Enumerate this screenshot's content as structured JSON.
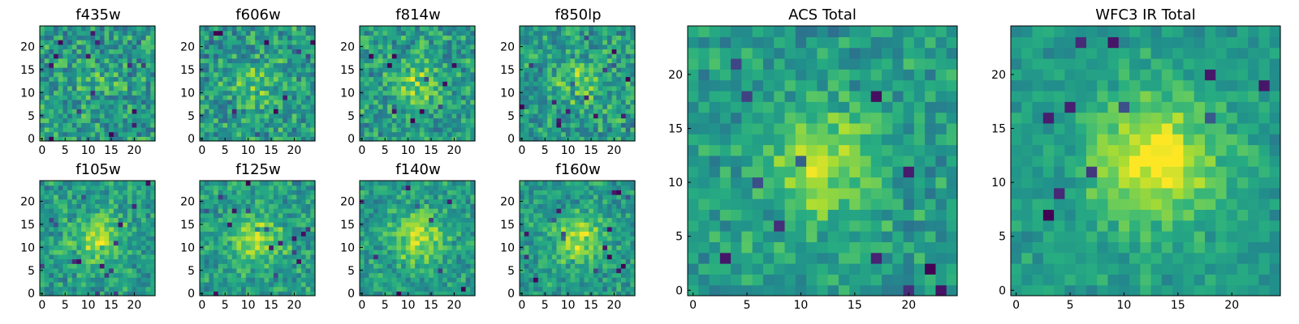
{
  "chart_data": [
    {
      "type": "heatmap",
      "title": "f435w",
      "xlabel": "",
      "ylabel": "",
      "xlim": [
        -0.5,
        24.5
      ],
      "ylim": [
        -0.5,
        24.5
      ],
      "xticks": [
        "0",
        "5",
        "10",
        "15",
        "20"
      ],
      "yticks": [
        "0",
        "5",
        "10",
        "15",
        "20"
      ],
      "grid": false,
      "colormap": "viridis",
      "values_description": "25x25 noisy pixel map with no clear central source"
    },
    {
      "type": "heatmap",
      "title": "f606w",
      "xlabel": "",
      "ylabel": "",
      "xlim": [
        -0.5,
        24.5
      ],
      "ylim": [
        -0.5,
        24.5
      ],
      "xticks": [
        "0",
        "5",
        "10",
        "15",
        "20"
      ],
      "yticks": [
        "0",
        "5",
        "10",
        "15",
        "20"
      ],
      "grid": false,
      "colormap": "viridis",
      "values_description": "25x25 noisy pixel map with faint central brightening"
    },
    {
      "type": "heatmap",
      "title": "f814w",
      "xlabel": "",
      "ylabel": "",
      "xlim": [
        -0.5,
        24.5
      ],
      "ylim": [
        -0.5,
        24.5
      ],
      "xticks": [
        "0",
        "5",
        "10",
        "15",
        "20"
      ],
      "yticks": [
        "0",
        "5",
        "10",
        "15",
        "20"
      ],
      "grid": false,
      "colormap": "viridis",
      "values_description": "25x25 noisy pixel map with faint central source"
    },
    {
      "type": "heatmap",
      "title": "f850lp",
      "xlabel": "",
      "ylabel": "",
      "xlim": [
        -0.5,
        24.5
      ],
      "ylim": [
        -0.5,
        24.5
      ],
      "xticks": [
        "0",
        "5",
        "10",
        "15",
        "20"
      ],
      "yticks": [
        "0",
        "5",
        "10",
        "15",
        "20"
      ],
      "grid": false,
      "colormap": "viridis",
      "values_description": "25x25 noisy pixel map with faint central source"
    },
    {
      "type": "heatmap",
      "title": "f105w",
      "xlabel": "",
      "ylabel": "",
      "xlim": [
        -0.5,
        24.5
      ],
      "ylim": [
        -0.5,
        24.5
      ],
      "xticks": [
        "0",
        "5",
        "10",
        "15",
        "20"
      ],
      "yticks": [
        "0",
        "5",
        "10",
        "15",
        "20"
      ],
      "grid": false,
      "colormap": "viridis",
      "values_description": "25x25 pixel map with central source"
    },
    {
      "type": "heatmap",
      "title": "f125w",
      "xlabel": "",
      "ylabel": "",
      "xlim": [
        -0.5,
        24.5
      ],
      "ylim": [
        -0.5,
        24.5
      ],
      "xticks": [
        "0",
        "5",
        "10",
        "15",
        "20"
      ],
      "yticks": [
        "0",
        "5",
        "10",
        "15",
        "20"
      ],
      "grid": false,
      "colormap": "viridis",
      "values_description": "25x25 pixel map with central source"
    },
    {
      "type": "heatmap",
      "title": "f140w",
      "xlabel": "",
      "ylabel": "",
      "xlim": [
        -0.5,
        24.5
      ],
      "ylim": [
        -0.5,
        24.5
      ],
      "xticks": [
        "0",
        "5",
        "10",
        "15",
        "20"
      ],
      "yticks": [
        "0",
        "5",
        "10",
        "15",
        "20"
      ],
      "grid": false,
      "colormap": "viridis",
      "values_description": "25x25 pixel map with central source"
    },
    {
      "type": "heatmap",
      "title": "f160w",
      "xlabel": "",
      "ylabel": "",
      "xlim": [
        -0.5,
        24.5
      ],
      "ylim": [
        -0.5,
        24.5
      ],
      "xticks": [
        "0",
        "5",
        "10",
        "15",
        "20"
      ],
      "yticks": [
        "0",
        "5",
        "10",
        "15",
        "20"
      ],
      "grid": false,
      "colormap": "viridis",
      "values_description": "25x25 pixel map with central source"
    },
    {
      "type": "heatmap",
      "title": "ACS Total",
      "xlabel": "",
      "ylabel": "",
      "xlim": [
        -0.5,
        24.5
      ],
      "ylim": [
        -0.5,
        24.5
      ],
      "xticks": [
        "0",
        "5",
        "10",
        "15",
        "20"
      ],
      "yticks": [
        "0",
        "5",
        "10",
        "15",
        "20"
      ],
      "grid": false,
      "colormap": "viridis",
      "values_description": "25x25 coadded optical map, bright source near (12,12)"
    },
    {
      "type": "heatmap",
      "title": "WFC3 IR Total",
      "xlabel": "",
      "ylabel": "",
      "xlim": [
        -0.5,
        24.5
      ],
      "ylim": [
        -0.5,
        24.5
      ],
      "xticks": [
        "0",
        "5",
        "10",
        "15",
        "20"
      ],
      "yticks": [
        "0",
        "5",
        "10",
        "15",
        "20"
      ],
      "grid": false,
      "colormap": "viridis",
      "values_description": "25x25 coadded infrared map, bright source near (13,12)"
    }
  ]
}
